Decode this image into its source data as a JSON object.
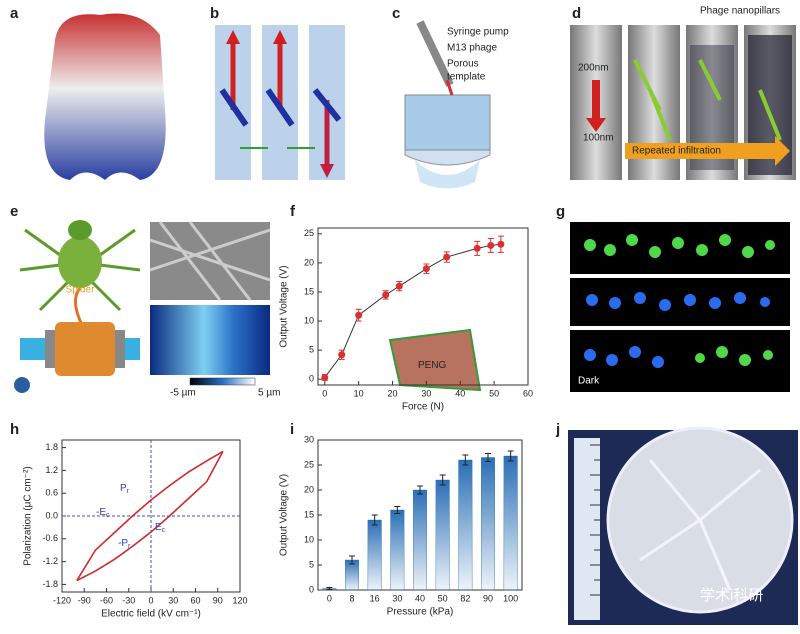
{
  "panel_labels": [
    "a",
    "b",
    "c",
    "d",
    "e",
    "f",
    "g",
    "h",
    "i",
    "j"
  ],
  "panel_c": {
    "texts": [
      "Syringe pump",
      "M13 phage",
      "Porous",
      "template"
    ]
  },
  "panel_d": {
    "texts": [
      "Phage nanopillars",
      "200nm",
      "100nm",
      "Repeated infiltration"
    ]
  },
  "panel_e": {
    "texts": [
      "Spider",
      "-5 µm",
      "5 µm"
    ]
  },
  "panel_g": {
    "texts": [
      "Dark"
    ]
  },
  "panel_j": {
    "texts": [
      "学术i科研"
    ]
  },
  "chart_data": [
    {
      "type": "line",
      "x_label": "Force (N)",
      "y_label": "Output Voltage (V)",
      "x": [
        0,
        5,
        10,
        18,
        22,
        30,
        36,
        45,
        49,
        52
      ],
      "values": [
        0.3,
        4.2,
        11,
        14.5,
        16,
        19,
        21,
        22.5,
        23,
        23.2
      ],
      "errors": [
        0.5,
        0.8,
        1,
        0.7,
        0.8,
        0.8,
        0.9,
        1.2,
        1.2,
        1.4
      ],
      "color": "#d93030",
      "markers": true,
      "xlim": [
        -2,
        60
      ],
      "xticks": [
        0,
        10,
        20,
        30,
        40,
        50,
        60
      ],
      "ylim": [
        -1,
        26
      ],
      "yticks": [
        0,
        5,
        10,
        15,
        20,
        25
      ],
      "annotations": [
        {
          "text": "PENG"
        }
      ]
    },
    {
      "type": "line",
      "x_label": "Electric field (kV cm⁻¹)",
      "y_label": "Polarization (μC cm⁻²)",
      "series": [
        {
          "x": [
            -100,
            -75,
            -50,
            -25,
            0,
            25,
            50,
            75,
            97
          ],
          "values": [
            -1.7,
            -0.9,
            -0.45,
            0,
            0.42,
            0.8,
            1.15,
            1.45,
            1.7
          ],
          "color": "#d02a2a"
        },
        {
          "x": [
            -100,
            -75,
            -50,
            -25,
            0,
            25,
            50,
            75,
            97
          ],
          "values": [
            -1.7,
            -1.45,
            -1.15,
            -0.8,
            -0.42,
            0,
            0.45,
            0.9,
            1.7
          ],
          "color": "#d02a2a"
        }
      ],
      "xlim": [
        -120,
        120
      ],
      "xticks": [
        -120,
        -90,
        -60,
        -30,
        0,
        30,
        60,
        90,
        120
      ],
      "ylim": [
        -2,
        2
      ],
      "yticks": [
        -1.8,
        -1.2,
        -0.6,
        {
          "value": 0,
          "label": "0.0"
        },
        0.6,
        1.2,
        1.8
      ],
      "crosshair": true,
      "annotations": [
        {
          "text": "P",
          "sub": "r"
        },
        {
          "text": "-P",
          "sub": "r"
        },
        {
          "text": "E",
          "sub": "c"
        },
        {
          "text": "-E",
          "sub": "c"
        }
      ]
    },
    {
      "type": "bar",
      "x_label": "Pressure (kPa)",
      "y_label": "Output Voltage (V)",
      "categories": [
        "0",
        "8",
        "16",
        "30",
        "40",
        "50",
        "82",
        "90",
        "100"
      ],
      "values": [
        0.3,
        6,
        14,
        16,
        20,
        22,
        26,
        26.5,
        26.8
      ],
      "errors": [
        0.2,
        0.8,
        1,
        0.7,
        0.8,
        1,
        1,
        0.8,
        1
      ],
      "color": "#2a6fb5",
      "ylim": [
        0,
        30
      ],
      "yticks": [
        0,
        5,
        10,
        15,
        20,
        25,
        30
      ]
    }
  ]
}
